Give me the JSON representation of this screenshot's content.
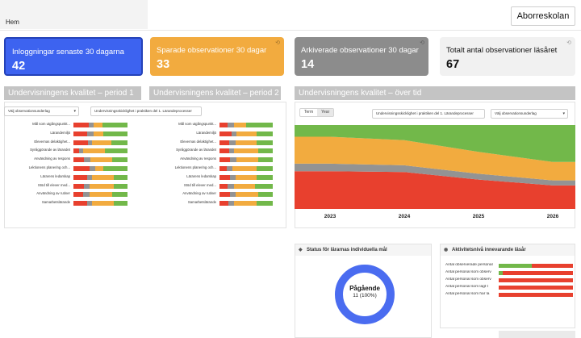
{
  "nav": {
    "home": "Hem",
    "school": "Aborreskolan"
  },
  "cards": [
    {
      "label": "Inloggningar senaste 30 dagarna",
      "value": "42",
      "color": "#3d63f0"
    },
    {
      "label": "Sparade observationer 30 dagar",
      "value": "33",
      "color": "#f2ab3f"
    },
    {
      "label": "Arkiverade observationer 30 dagar",
      "value": "14",
      "color": "#8c8c8c"
    },
    {
      "label": "Totalt antal observationer läsåret",
      "value": "67",
      "color": "#f1f1f1"
    }
  ],
  "colors": {
    "red": "#e8402e",
    "gray": "#939393",
    "orange": "#f2ab3f",
    "green": "#72b84a",
    "blue": "#4a6cf0"
  },
  "period1": {
    "title": "Undervisningens kvalitet – period 1",
    "dropdown": "Välj observationsunderlag",
    "items": [
      {
        "label": "Mål som utgångspunkt...",
        "segs": [
          0.28,
          0.1,
          0.15,
          0.47
        ]
      },
      {
        "label": "Lärandemiljö",
        "segs": [
          0.25,
          0.12,
          0.18,
          0.45
        ]
      },
      {
        "label": "Elevernas delaktighet...",
        "segs": [
          0.27,
          0.08,
          0.35,
          0.3
        ]
      },
      {
        "label": "Synliggörande av lärandet",
        "segs": [
          0.1,
          0.08,
          0.4,
          0.42
        ]
      },
      {
        "label": "Användning av respons",
        "segs": [
          0.2,
          0.12,
          0.4,
          0.28
        ]
      },
      {
        "label": "Lektionens planering och...",
        "segs": [
          0.3,
          0.1,
          0.15,
          0.45
        ]
      },
      {
        "label": "Lärarens ledarskap",
        "segs": [
          0.25,
          0.1,
          0.4,
          0.25
        ]
      },
      {
        "label": "Stöd till elever med...",
        "segs": [
          0.2,
          0.1,
          0.45,
          0.25
        ]
      },
      {
        "label": "Användning av rutiner",
        "segs": [
          0.18,
          0.12,
          0.42,
          0.28
        ]
      },
      {
        "label": "Samarbetslärande",
        "segs": [
          0.25,
          0.1,
          0.4,
          0.25
        ]
      }
    ]
  },
  "period2": {
    "title": "Undervisningens kvalitet – period 2",
    "dropdown": "Undervisningsskicklighet i praktiken del 1. Lärandeprocesser",
    "items": [
      {
        "label": "Mål som utgångspunkt...",
        "segs": [
          0.15,
          0.12,
          0.23,
          0.5
        ]
      },
      {
        "label": "Lärandemiljö",
        "segs": [
          0.22,
          0.1,
          0.38,
          0.3
        ]
      },
      {
        "label": "Elevernas delaktighet...",
        "segs": [
          0.18,
          0.12,
          0.4,
          0.3
        ]
      },
      {
        "label": "Synliggörande av lärandet",
        "segs": [
          0.18,
          0.1,
          0.44,
          0.28
        ]
      },
      {
        "label": "Användning av respons",
        "segs": [
          0.2,
          0.12,
          0.4,
          0.28
        ]
      },
      {
        "label": "Lektionens planering och...",
        "segs": [
          0.14,
          0.1,
          0.46,
          0.3
        ]
      },
      {
        "label": "Lärarens ledarskap",
        "segs": [
          0.2,
          0.1,
          0.4,
          0.3
        ]
      },
      {
        "label": "Stöd till elever med...",
        "segs": [
          0.15,
          0.12,
          0.4,
          0.33
        ]
      },
      {
        "label": "Användning av rutiner",
        "segs": [
          0.2,
          0.1,
          0.42,
          0.28
        ]
      },
      {
        "label": "Samarbetslärande",
        "segs": [
          0.16,
          0.12,
          0.42,
          0.3
        ]
      }
    ]
  },
  "overtime": {
    "title": "Undervisningens kvalitet – över tid",
    "toggle": [
      "Term",
      "Year"
    ],
    "toggle_selected": "Year",
    "dropdown1": "Undervisningsskicklighet i praktiken del 1. Lärandeprocesser",
    "dropdown2": "Välj observationsunderlag"
  },
  "chart_data": {
    "type": "area",
    "x": [
      "2023",
      "2024",
      "2025",
      "2026"
    ],
    "ylim": [
      0,
      1
    ],
    "series": [
      {
        "color": "#e8402e",
        "values": [
          0.45,
          0.44,
          0.35,
          0.28
        ]
      },
      {
        "color": "#939393",
        "values": [
          0.09,
          0.08,
          0.07,
          0.06
        ]
      },
      {
        "color": "#f2ab3f",
        "values": [
          0.32,
          0.3,
          0.26,
          0.22
        ]
      },
      {
        "color": "#72b84a",
        "values": [
          0.14,
          0.18,
          0.32,
          0.44
        ]
      }
    ]
  },
  "status": {
    "title": "Status för lärarnas individuella mål",
    "center_label": "Pågående",
    "center_value": "11 (100%)"
  },
  "activity": {
    "title": "Aktivitetsnivå innevarande läsår",
    "rows": [
      {
        "label": "Antal observerade personal",
        "green": 0.45
      },
      {
        "label": "Antal personal som observ",
        "green": 0.05
      },
      {
        "label": "Antal personal som observ",
        "green": 0.0
      },
      {
        "label": "Antal personal som lagt t",
        "green": 0.0
      },
      {
        "label": "Antal personal som har la",
        "green": 0.0
      }
    ]
  }
}
